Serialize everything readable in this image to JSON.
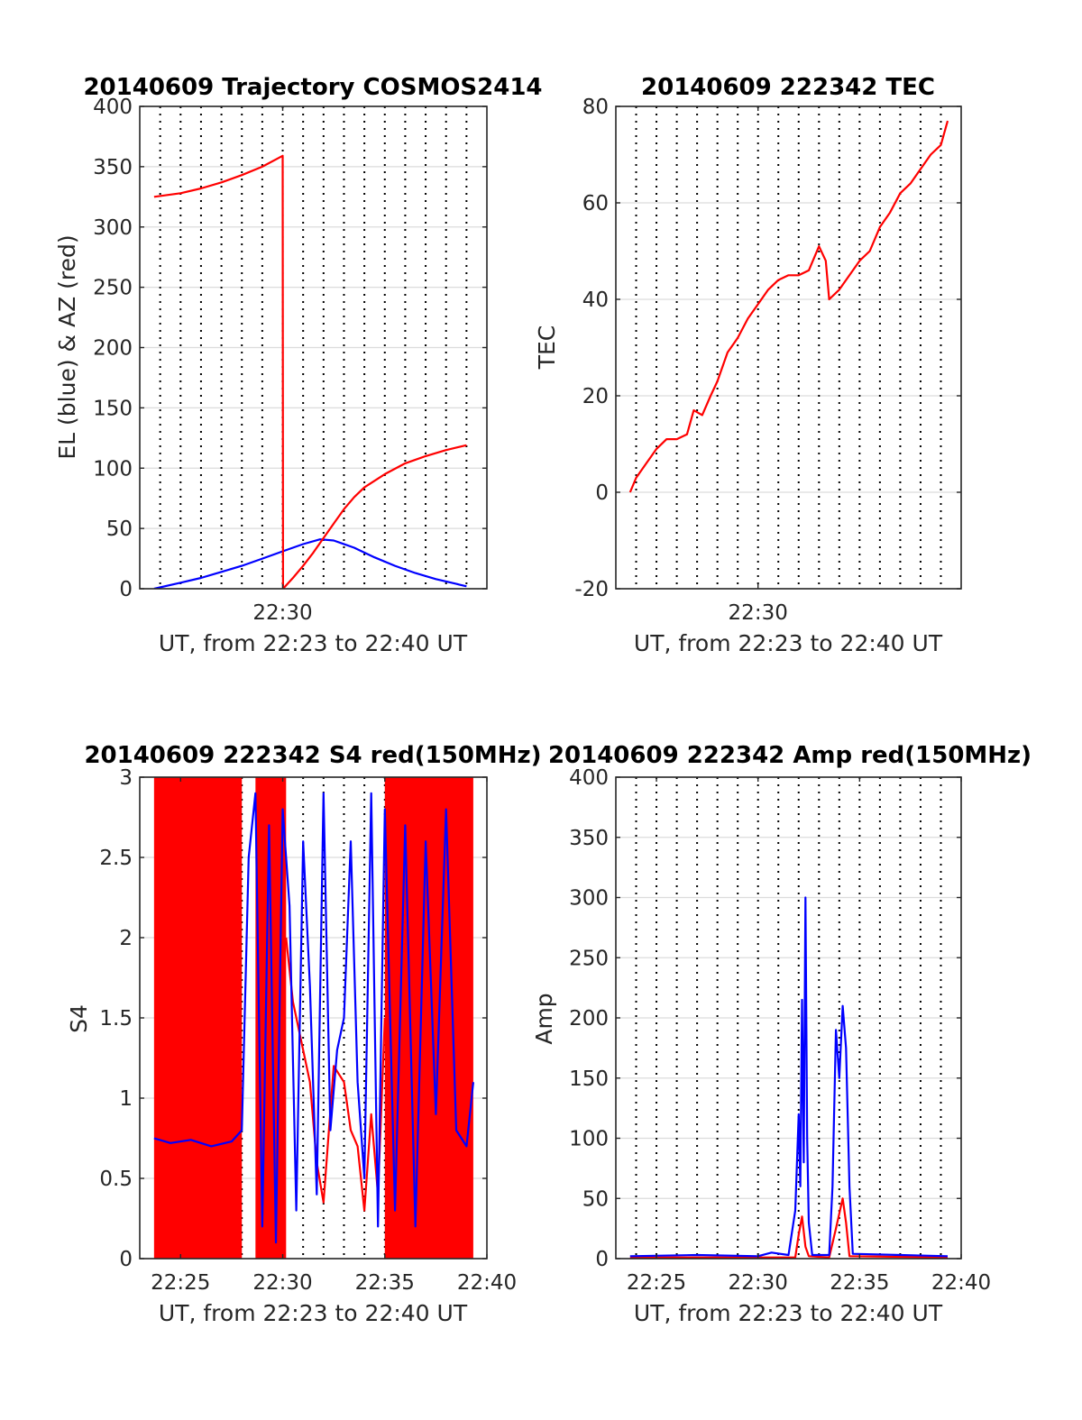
{
  "colors": {
    "red": "#ff0000",
    "blue": "#0000ff",
    "axis": "#262626",
    "grid": "#dcdcdc",
    "vgrid": "#000000"
  },
  "chart_data": [
    {
      "id": "trajectory",
      "type": "line",
      "title": "20140609 Trajectory COSMOS2414",
      "xlabel": "UT, from 22:23 to 22:40 UT",
      "ylabel": "EL (blue) & AZ (red)",
      "xlim": [
        "22:23",
        "22:40"
      ],
      "ylim": [
        0,
        400
      ],
      "yticks": [
        0,
        50,
        100,
        150,
        200,
        250,
        300,
        350,
        400
      ],
      "xticks": [
        {
          "t": "22:30",
          "label": "22:30"
        }
      ],
      "grid": "y major, x dotted minute lines",
      "series": [
        {
          "color": "#0000ff",
          "points": [
            [
              "22:23:42",
              0
            ],
            [
              "22:25:00",
              5
            ],
            [
              "22:26:00",
              9
            ],
            [
              "22:27:00",
              14
            ],
            [
              "22:28:00",
              19
            ],
            [
              "22:29:00",
              25
            ],
            [
              "22:30:00",
              31
            ],
            [
              "22:31:00",
              37
            ],
            [
              "22:31:50",
              41
            ],
            [
              "22:32:30",
              40
            ],
            [
              "22:33:30",
              34
            ],
            [
              "22:34:30",
              26
            ],
            [
              "22:35:30",
              19
            ],
            [
              "22:36:30",
              13
            ],
            [
              "22:37:30",
              8
            ],
            [
              "22:38:30",
              4
            ],
            [
              "22:39:00",
              2
            ]
          ]
        },
        {
          "color": "#ff0000",
          "points": [
            [
              "22:23:42",
              325
            ],
            [
              "22:25:00",
              328
            ],
            [
              "22:26:00",
              332
            ],
            [
              "22:27:00",
              337
            ],
            [
              "22:28:00",
              343
            ],
            [
              "22:29:00",
              350
            ],
            [
              "22:30:00",
              359
            ],
            [
              "22:30:01",
              0
            ],
            [
              "22:30:30",
              9
            ],
            [
              "22:31:00",
              19
            ],
            [
              "22:31:30",
              30
            ],
            [
              "22:32:00",
              42
            ],
            [
              "22:32:30",
              54
            ],
            [
              "22:33:00",
              66
            ],
            [
              "22:33:30",
              76
            ],
            [
              "22:34:00",
              84
            ],
            [
              "22:35:00",
              95
            ],
            [
              "22:36:00",
              104
            ],
            [
              "22:37:00",
              110
            ],
            [
              "22:38:00",
              115
            ],
            [
              "22:39:00",
              119
            ]
          ]
        }
      ]
    },
    {
      "id": "tec",
      "type": "line",
      "title": "20140609 222342 TEC",
      "xlabel": "UT, from 22:23 to 22:40 UT",
      "ylabel": "TEC",
      "xlim": [
        "22:23",
        "22:40"
      ],
      "ylim": [
        -20,
        80
      ],
      "yticks": [
        -20,
        0,
        20,
        40,
        60,
        80
      ],
      "xticks": [
        {
          "t": "22:30",
          "label": "22:30"
        }
      ],
      "grid": "y major, x dotted minute lines",
      "series": [
        {
          "color": "#ff0000",
          "points": [
            [
              "22:23:42",
              0
            ],
            [
              "22:24:00",
              3
            ],
            [
              "22:24:30",
              6
            ],
            [
              "22:25:00",
              9
            ],
            [
              "22:25:30",
              11
            ],
            [
              "22:26:00",
              11
            ],
            [
              "22:26:30",
              12
            ],
            [
              "22:26:50",
              17
            ],
            [
              "22:27:15",
              16
            ],
            [
              "22:27:40",
              20
            ],
            [
              "22:28:00",
              23
            ],
            [
              "22:28:30",
              29
            ],
            [
              "22:29:00",
              32
            ],
            [
              "22:29:30",
              36
            ],
            [
              "22:30:00",
              39
            ],
            [
              "22:30:30",
              42
            ],
            [
              "22:31:00",
              44
            ],
            [
              "22:31:30",
              45
            ],
            [
              "22:32:00",
              45
            ],
            [
              "22:32:30",
              46
            ],
            [
              "22:33:00",
              51
            ],
            [
              "22:33:20",
              48
            ],
            [
              "22:33:30",
              40
            ],
            [
              "22:34:00",
              42
            ],
            [
              "22:34:30",
              45
            ],
            [
              "22:35:00",
              48
            ],
            [
              "22:35:30",
              50
            ],
            [
              "22:36:00",
              55
            ],
            [
              "22:36:30",
              58
            ],
            [
              "22:37:00",
              62
            ],
            [
              "22:37:30",
              64
            ],
            [
              "22:38:00",
              67
            ],
            [
              "22:38:30",
              70
            ],
            [
              "22:39:00",
              72
            ],
            [
              "22:39:20",
              77
            ]
          ]
        }
      ]
    },
    {
      "id": "s4",
      "type": "line",
      "title": "20140609 222342 S4 red(150MHz)",
      "xlabel": "UT, from 22:23 to 22:40 UT",
      "ylabel": "S4",
      "xlim": [
        "22:23",
        "22:40"
      ],
      "ylim": [
        0,
        3
      ],
      "yticks": [
        0,
        0.5,
        1,
        1.5,
        2,
        2.5,
        3
      ],
      "xticks": [
        {
          "t": "22:25",
          "label": "22:25"
        },
        {
          "t": "22:30",
          "label": "22:30"
        },
        {
          "t": "22:35",
          "label": "22:35"
        },
        {
          "t": "22:40",
          "label": "22:40"
        }
      ],
      "grid": "y major, x dotted minute lines",
      "red_fill_ranges": [
        [
          "22:23:42",
          "22:28:00"
        ],
        [
          "22:28:40",
          "22:30:10"
        ],
        [
          "22:35:00",
          "22:39:20"
        ]
      ],
      "series": [
        {
          "color": "#ff0000",
          "points": [
            [
              "22:30:10",
              2.0
            ],
            [
              "22:30:30",
              1.6
            ],
            [
              "22:31:00",
              1.3
            ],
            [
              "22:31:20",
              1.1
            ],
            [
              "22:31:40",
              0.6
            ],
            [
              "22:32:00",
              0.35
            ],
            [
              "22:32:30",
              1.2
            ],
            [
              "22:33:00",
              1.1
            ],
            [
              "22:33:20",
              0.8
            ],
            [
              "22:33:40",
              0.7
            ],
            [
              "22:34:00",
              0.3
            ],
            [
              "22:34:20",
              0.9
            ],
            [
              "22:34:40",
              0.4
            ],
            [
              "22:35:00",
              1.5
            ]
          ]
        },
        {
          "color": "#0000ff",
          "points": [
            [
              "22:23:42",
              0.75
            ],
            [
              "22:24:30",
              0.72
            ],
            [
              "22:25:30",
              0.74
            ],
            [
              "22:26:30",
              0.7
            ],
            [
              "22:27:30",
              0.73
            ],
            [
              "22:28:00",
              0.8
            ],
            [
              "22:28:20",
              2.5
            ],
            [
              "22:28:40",
              2.9
            ],
            [
              "22:29:00",
              0.2
            ],
            [
              "22:29:20",
              2.7
            ],
            [
              "22:29:40",
              0.1
            ],
            [
              "22:30:00",
              2.8
            ],
            [
              "22:30:20",
              2.2
            ],
            [
              "22:30:40",
              0.3
            ],
            [
              "22:31:00",
              2.6
            ],
            [
              "22:31:20",
              1.7
            ],
            [
              "22:31:40",
              0.4
            ],
            [
              "22:32:00",
              2.9
            ],
            [
              "22:32:20",
              0.8
            ],
            [
              "22:32:40",
              1.3
            ],
            [
              "22:33:00",
              1.5
            ],
            [
              "22:33:20",
              2.6
            ],
            [
              "22:33:40",
              1.1
            ],
            [
              "22:34:00",
              0.5
            ],
            [
              "22:34:20",
              2.9
            ],
            [
              "22:34:40",
              0.2
            ],
            [
              "22:35:00",
              2.8
            ],
            [
              "22:35:30",
              0.3
            ],
            [
              "22:36:00",
              2.7
            ],
            [
              "22:36:30",
              0.2
            ],
            [
              "22:37:00",
              2.6
            ],
            [
              "22:37:30",
              0.9
            ],
            [
              "22:38:00",
              2.8
            ],
            [
              "22:38:30",
              0.8
            ],
            [
              "22:39:00",
              0.7
            ],
            [
              "22:39:20",
              1.1
            ]
          ]
        }
      ]
    },
    {
      "id": "amp",
      "type": "line",
      "title": "20140609 222342 Amp red(150MHz)",
      "xlabel": "UT, from 22:23 to 22:40 UT",
      "ylabel": "Amp",
      "xlim": [
        "22:23",
        "22:40"
      ],
      "ylim": [
        0,
        400
      ],
      "yticks": [
        0,
        50,
        100,
        150,
        200,
        250,
        300,
        350,
        400
      ],
      "xticks": [
        {
          "t": "22:25",
          "label": "22:25"
        },
        {
          "t": "22:30",
          "label": "22:30"
        },
        {
          "t": "22:35",
          "label": "22:35"
        },
        {
          "t": "22:40",
          "label": "22:40"
        }
      ],
      "grid": "y major, x dotted minute lines",
      "series": [
        {
          "color": "#ff0000",
          "points": [
            [
              "22:23:42",
              1
            ],
            [
              "22:31:50",
              1
            ],
            [
              "22:32:00",
              20
            ],
            [
              "22:32:10",
              35
            ],
            [
              "22:32:20",
              10
            ],
            [
              "22:32:30",
              2
            ],
            [
              "22:33:30",
              1
            ],
            [
              "22:33:50",
              25
            ],
            [
              "22:34:10",
              50
            ],
            [
              "22:34:20",
              30
            ],
            [
              "22:34:30",
              2
            ],
            [
              "22:39:20",
              1
            ]
          ]
        },
        {
          "color": "#0000ff",
          "points": [
            [
              "22:23:42",
              2
            ],
            [
              "22:27:00",
              3
            ],
            [
              "22:30:00",
              2
            ],
            [
              "22:30:40",
              5
            ],
            [
              "22:31:30",
              3
            ],
            [
              "22:31:50",
              40
            ],
            [
              "22:32:00",
              120
            ],
            [
              "22:32:05",
              60
            ],
            [
              "22:32:10",
              215
            ],
            [
              "22:32:15",
              80
            ],
            [
              "22:32:20",
              300
            ],
            [
              "22:32:25",
              100
            ],
            [
              "22:32:30",
              30
            ],
            [
              "22:32:40",
              3
            ],
            [
              "22:33:30",
              3
            ],
            [
              "22:33:40",
              60
            ],
            [
              "22:33:50",
              190
            ],
            [
              "22:34:00",
              150
            ],
            [
              "22:34:10",
              210
            ],
            [
              "22:34:20",
              175
            ],
            [
              "22:34:30",
              60
            ],
            [
              "22:34:40",
              4
            ],
            [
              "22:37:00",
              3
            ],
            [
              "22:39:20",
              2
            ]
          ]
        }
      ]
    }
  ]
}
